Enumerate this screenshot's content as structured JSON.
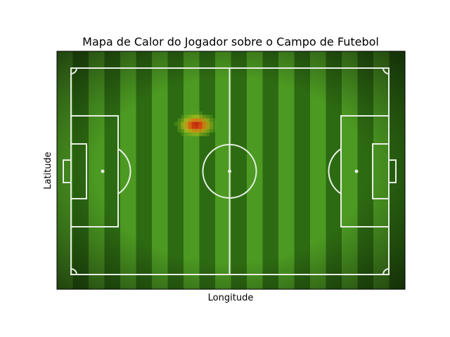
{
  "chart_data": {
    "type": "heatmap",
    "title": "Mapa de Calor do Jogador sobre o Campo de Futebol",
    "xlabel": "Longitude",
    "ylabel": "Latitude",
    "xlim": [
      0,
      1
    ],
    "ylim": [
      0,
      1
    ],
    "ticks_visible": false,
    "grid": false,
    "background": "soccer-pitch-grass",
    "colormap": [
      "#2a8f1e",
      "#c9c81a",
      "#e07a10",
      "#c0220f"
    ],
    "hotspot": {
      "x": 0.4,
      "y": 0.69,
      "peak": 1.0
    }
  },
  "colors": {
    "grass_dark": "#2d6b12",
    "grass_light": "#4c9a22",
    "lines": "#e8efe6"
  }
}
